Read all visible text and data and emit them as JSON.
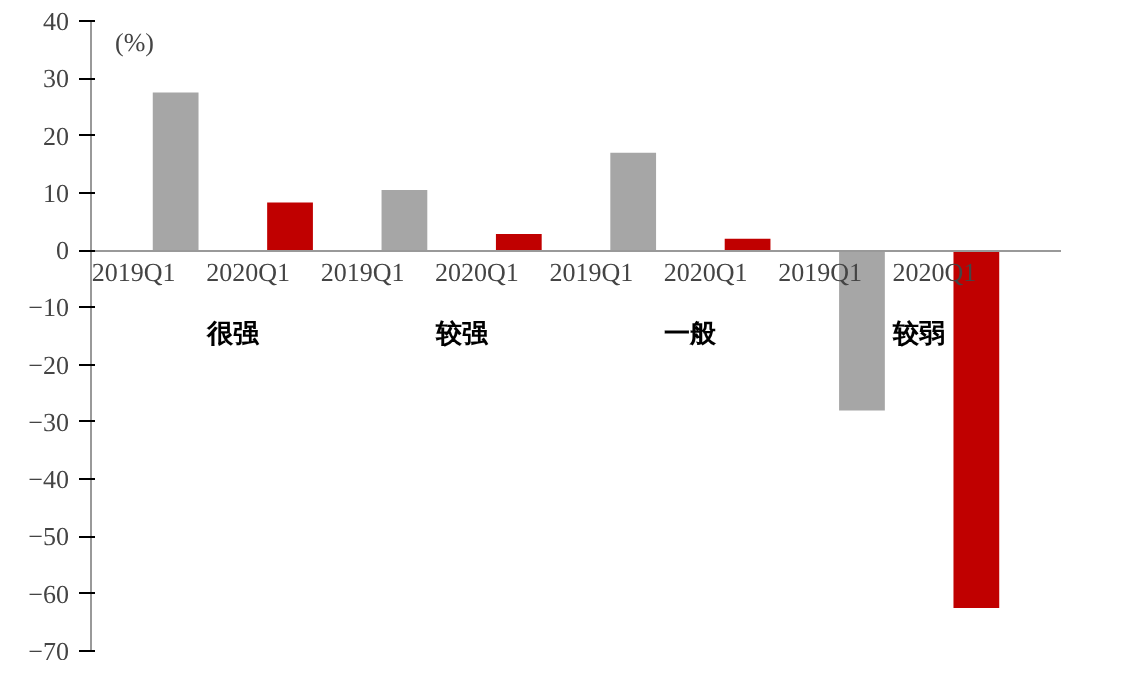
{
  "chart_data": {
    "type": "bar",
    "ylabel": "(%)",
    "categories": [
      "很强",
      "较强",
      "一般",
      "较弱"
    ],
    "series": [
      {
        "name": "2019Q1",
        "color": "#a6a6a6",
        "values": [
          27.5,
          10.5,
          17,
          -28
        ]
      },
      {
        "name": "2020Q1",
        "color": "#c00000",
        "values": [
          8.3,
          2.8,
          2,
          -62.5
        ]
      }
    ],
    "ylim": [
      -70,
      40
    ],
    "yticks": [
      -70,
      -60,
      -50,
      -40,
      -30,
      -20,
      -10,
      0,
      10,
      20,
      30,
      40
    ],
    "grid": false
  }
}
